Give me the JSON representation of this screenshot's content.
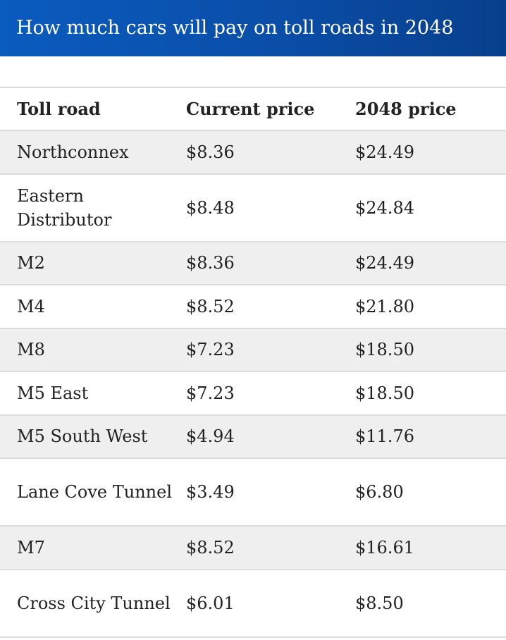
{
  "title": "How much cars will pay on toll roads in 2048",
  "table": {
    "headers": [
      "Toll road",
      "Current price",
      "2048 price"
    ],
    "rows": [
      {
        "road": "Northconnex",
        "current": "$8.36",
        "future": "$24.49"
      },
      {
        "road": "Eastern Distributor",
        "current": "$8.48",
        "future": "$24.84"
      },
      {
        "road": "M2",
        "current": "$8.36",
        "future": "$24.49"
      },
      {
        "road": "M4",
        "current": "$8.52",
        "future": "$21.80"
      },
      {
        "road": "M8",
        "current": "$7.23",
        "future": "$18.50"
      },
      {
        "road": "M5 East",
        "current": "$7.23",
        "future": "$18.50"
      },
      {
        "road": "M5 South West",
        "current": "$4.94",
        "future": "$11.76"
      },
      {
        "road": "Lane Cove Tunnel",
        "current": "$3.49",
        "future": "$6.80"
      },
      {
        "road": "M7",
        "current": "$8.52",
        "future": "$16.61"
      },
      {
        "road": "Cross City Tunnel",
        "current": "$6.01",
        "future": "$8.50"
      }
    ]
  }
}
